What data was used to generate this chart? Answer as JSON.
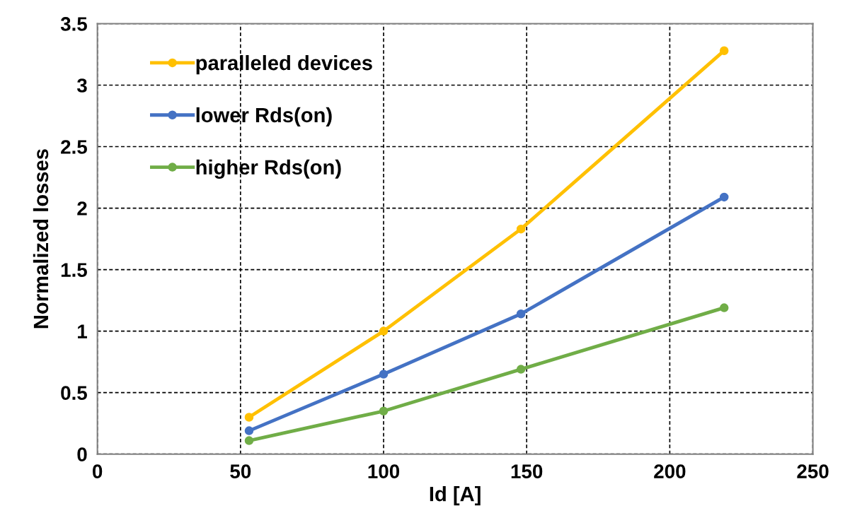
{
  "chart_data": {
    "type": "line",
    "xlabel": "Id [A]",
    "ylabel": "Normalized losses",
    "x": [
      53,
      100,
      148,
      219
    ],
    "series": [
      {
        "name": "paralleled devices",
        "color": "#ffc000",
        "values": [
          0.3,
          1.0,
          1.83,
          3.28
        ]
      },
      {
        "name": "lower Rds(on)",
        "color": "#4472c4",
        "values": [
          0.19,
          0.65,
          1.14,
          2.09
        ]
      },
      {
        "name": "higher Rds(on)",
        "color": "#70ad47",
        "values": [
          0.11,
          0.35,
          0.69,
          1.19
        ]
      }
    ],
    "xlim": [
      0,
      250
    ],
    "xticks": [
      0,
      50,
      100,
      150,
      200,
      250
    ],
    "ylim": [
      0,
      3.5
    ],
    "yticks": [
      0,
      0.5,
      1,
      1.5,
      2,
      2.5,
      3,
      3.5
    ],
    "grid": true,
    "legend": "top left",
    "marker": "circle",
    "line_style": "solid"
  }
}
